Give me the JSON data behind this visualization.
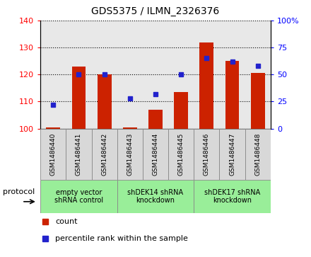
{
  "title": "GDS5375 / ILMN_2326376",
  "samples": [
    "GSM1486440",
    "GSM1486441",
    "GSM1486442",
    "GSM1486443",
    "GSM1486444",
    "GSM1486445",
    "GSM1486446",
    "GSM1486447",
    "GSM1486448"
  ],
  "bar_values": [
    100.5,
    123.0,
    120.0,
    100.5,
    107.0,
    113.5,
    132.0,
    125.0,
    120.5
  ],
  "percentile_values": [
    22,
    50,
    50,
    28,
    32,
    50,
    65,
    62,
    58
  ],
  "bar_color": "#cc2200",
  "dot_color": "#2222cc",
  "ylim_left": [
    100,
    140
  ],
  "ylim_right": [
    0,
    100
  ],
  "yticks_left": [
    100,
    110,
    120,
    130,
    140
  ],
  "yticks_right": [
    0,
    25,
    50,
    75,
    100
  ],
  "groups": [
    {
      "label": "empty vector\nshRNA control",
      "start": 0,
      "end": 3,
      "color": "#99ee99"
    },
    {
      "label": "shDEK14 shRNA\nknockdown",
      "start": 3,
      "end": 6,
      "color": "#99ee99"
    },
    {
      "label": "shDEK17 shRNA\nknockdown",
      "start": 6,
      "end": 9,
      "color": "#99ee99"
    }
  ],
  "protocol_label": "protocol",
  "legend_count_label": "count",
  "legend_percentile_label": "percentile rank within the sample",
  "plot_bg_color": "#e8e8e8",
  "sample_box_color": "#d8d8d8"
}
